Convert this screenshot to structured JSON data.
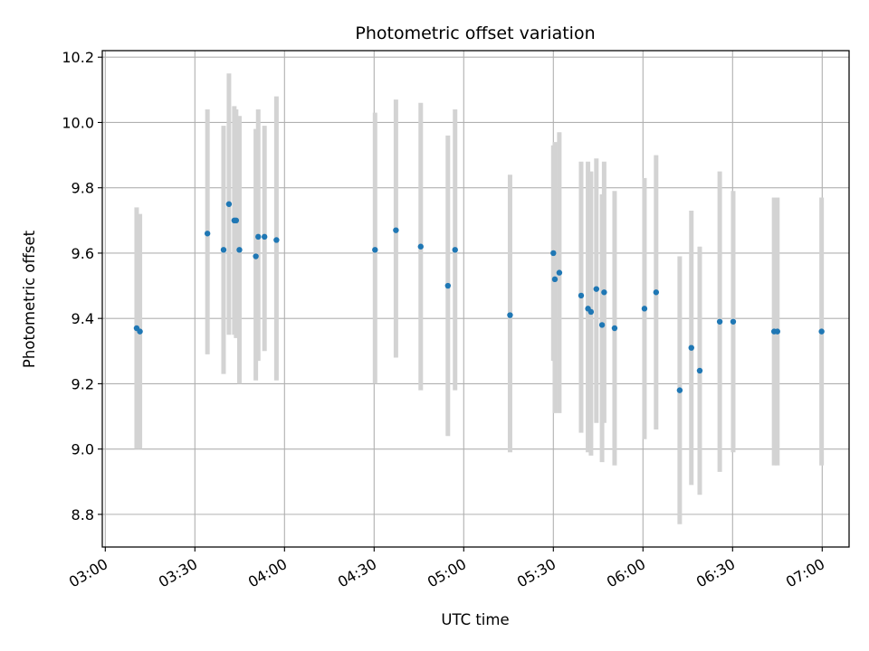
{
  "chart_data": {
    "type": "scatter",
    "title": "Photometric offset variation",
    "xlabel": "UTC time",
    "ylabel": "Photometric offset",
    "xlim": [
      "02:59",
      "07:09"
    ],
    "ylim": [
      8.7,
      10.22
    ],
    "x_ticks": [
      "03:00",
      "03:30",
      "04:00",
      "04:30",
      "05:00",
      "05:30",
      "06:00",
      "06:30",
      "07:00"
    ],
    "y_ticks": [
      "8.8",
      "9.0",
      "9.2",
      "9.4",
      "9.6",
      "9.8",
      "10.0",
      "10.2"
    ],
    "grid": true,
    "colors": {
      "point": "#1f77b4",
      "errorbar": "#d3d3d3",
      "grid": "#b0b0b0"
    },
    "series": [
      {
        "points": [
          {
            "x": "03:10:30",
            "y": 9.37,
            "ylow": 9.0,
            "yhigh": 9.74
          },
          {
            "x": "03:11:36",
            "y": 9.36,
            "ylow": 9.0,
            "yhigh": 9.72
          },
          {
            "x": "03:34:12",
            "y": 9.66,
            "ylow": 9.29,
            "yhigh": 10.04
          },
          {
            "x": "03:39:36",
            "y": 9.61,
            "ylow": 9.23,
            "yhigh": 9.99
          },
          {
            "x": "03:41:24",
            "y": 9.75,
            "ylow": 9.35,
            "yhigh": 10.15
          },
          {
            "x": "03:43:12",
            "y": 9.7,
            "ylow": 9.35,
            "yhigh": 10.05
          },
          {
            "x": "03:43:48",
            "y": 9.7,
            "ylow": 9.34,
            "yhigh": 10.04
          },
          {
            "x": "03:44:54",
            "y": 9.61,
            "ylow": 9.2,
            "yhigh": 10.02
          },
          {
            "x": "03:50:24",
            "y": 9.59,
            "ylow": 9.21,
            "yhigh": 9.98
          },
          {
            "x": "03:51:12",
            "y": 9.65,
            "ylow": 9.27,
            "yhigh": 10.04
          },
          {
            "x": "03:53:18",
            "y": 9.65,
            "ylow": 9.3,
            "yhigh": 9.99
          },
          {
            "x": "03:57:18",
            "y": 9.64,
            "ylow": 9.21,
            "yhigh": 10.08
          },
          {
            "x": "04:30:18",
            "y": 9.61,
            "ylow": 9.2,
            "yhigh": 10.03
          },
          {
            "x": "04:37:18",
            "y": 9.67,
            "ylow": 9.28,
            "yhigh": 10.07
          },
          {
            "x": "04:45:36",
            "y": 9.62,
            "ylow": 9.18,
            "yhigh": 10.06
          },
          {
            "x": "04:54:42",
            "y": 9.5,
            "ylow": 9.04,
            "yhigh": 9.96
          },
          {
            "x": "04:57:06",
            "y": 9.61,
            "ylow": 9.18,
            "yhigh": 10.04
          },
          {
            "x": "05:15:30",
            "y": 9.41,
            "ylow": 8.99,
            "yhigh": 9.84
          },
          {
            "x": "05:30:00",
            "y": 9.6,
            "ylow": 9.27,
            "yhigh": 9.93
          },
          {
            "x": "05:30:30",
            "y": 9.52,
            "ylow": 9.11,
            "yhigh": 9.94
          },
          {
            "x": "05:32:00",
            "y": 9.54,
            "ylow": 9.11,
            "yhigh": 9.97
          },
          {
            "x": "05:39:18",
            "y": 9.47,
            "ylow": 9.05,
            "yhigh": 9.88
          },
          {
            "x": "05:41:36",
            "y": 9.43,
            "ylow": 8.99,
            "yhigh": 9.88
          },
          {
            "x": "05:42:36",
            "y": 9.42,
            "ylow": 8.98,
            "yhigh": 9.85
          },
          {
            "x": "05:44:24",
            "y": 9.49,
            "ylow": 9.08,
            "yhigh": 9.89
          },
          {
            "x": "05:46:18",
            "y": 9.38,
            "ylow": 8.96,
            "yhigh": 9.78
          },
          {
            "x": "05:47:00",
            "y": 9.48,
            "ylow": 9.08,
            "yhigh": 9.88
          },
          {
            "x": "05:50:30",
            "y": 9.37,
            "ylow": 8.95,
            "yhigh": 9.79
          },
          {
            "x": "06:00:30",
            "y": 9.43,
            "ylow": 9.03,
            "yhigh": 9.83
          },
          {
            "x": "06:04:24",
            "y": 9.48,
            "ylow": 9.06,
            "yhigh": 9.9
          },
          {
            "x": "06:12:18",
            "y": 9.18,
            "ylow": 8.77,
            "yhigh": 9.59
          },
          {
            "x": "06:16:12",
            "y": 9.31,
            "ylow": 8.89,
            "yhigh": 9.73
          },
          {
            "x": "06:19:00",
            "y": 9.24,
            "ylow": 8.86,
            "yhigh": 9.62
          },
          {
            "x": "06:25:42",
            "y": 9.39,
            "ylow": 8.93,
            "yhigh": 9.85
          },
          {
            "x": "06:30:12",
            "y": 9.39,
            "ylow": 8.99,
            "yhigh": 9.79
          },
          {
            "x": "06:43:54",
            "y": 9.36,
            "ylow": 8.95,
            "yhigh": 9.77
          },
          {
            "x": "06:45:00",
            "y": 9.36,
            "ylow": 8.95,
            "yhigh": 9.77
          },
          {
            "x": "06:59:48",
            "y": 9.36,
            "ylow": 8.95,
            "yhigh": 9.77
          }
        ]
      }
    ]
  }
}
